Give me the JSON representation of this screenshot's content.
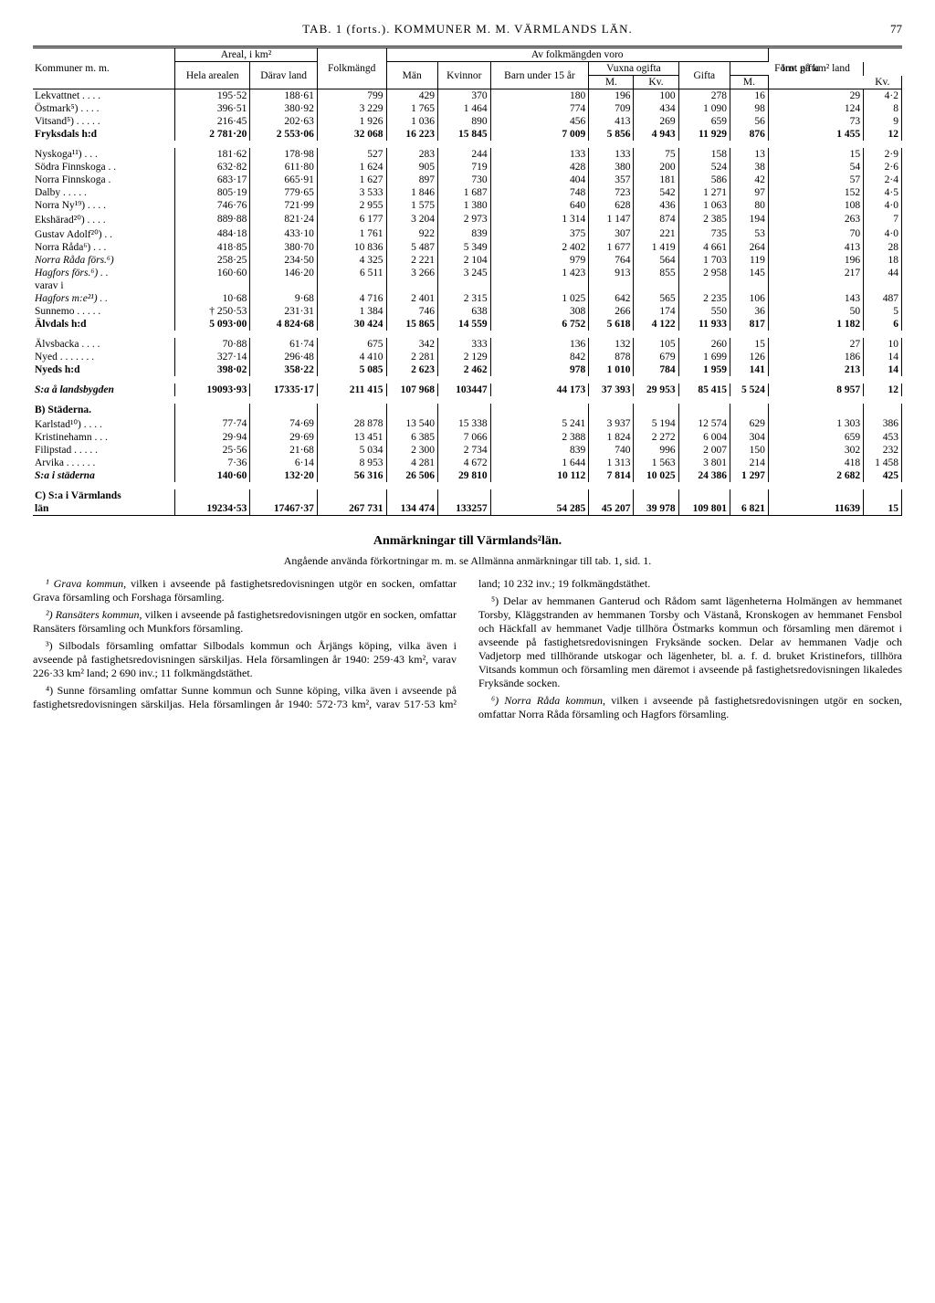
{
  "page_header": "TAB. 1 (forts.). KOMMUNER M. M.   VÄRMLANDS LÄN.",
  "page_number": "77",
  "head": {
    "kommuner": "Kommuner m. m.",
    "areal_group": "Areal, i km²",
    "hela": "Hela arealen",
    "darav": "Därav land",
    "folkmangd": "Folk­mängd",
    "av_folk": "Av folkmängden voro",
    "man": "Män",
    "kvin": "Kvin­nor",
    "barn": "Barn under 15 år",
    "vuxna": "Vuxna ogifta",
    "m": "M.",
    "kv": "Kv.",
    "gifta": "Gifta",
    "forut": "Förut gifta",
    "inv": "Inv. på km² land"
  },
  "rows": [
    {
      "l": "Lekvattnet . . . .",
      "a": "195·52",
      "b": "188·61",
      "c": "799",
      "d": "429",
      "e": "370",
      "f": "180",
      "g": "196",
      "h": "100",
      "i": "278",
      "j": "16",
      "k": "29",
      "m": "4·2"
    },
    {
      "l": "Östmark⁵) . . . .",
      "a": "396·51",
      "b": "380·92",
      "c": "3 229",
      "d": "1 765",
      "e": "1 464",
      "f": "774",
      "g": "709",
      "h": "434",
      "i": "1 090",
      "j": "98",
      "k": "124",
      "m": "8"
    },
    {
      "l": "Vitsand⁵) . . . . .",
      "a": "216·45",
      "b": "202·63",
      "c": "1 926",
      "d": "1 036",
      "e": "890",
      "f": "456",
      "g": "413",
      "h": "269",
      "i": "659",
      "j": "56",
      "k": "73",
      "m": "9"
    },
    {
      "bold": true,
      "l": "Fryksdals h:d",
      "a": "2 781·20",
      "b": "2 553·06",
      "c": "32 068",
      "d": "16 223",
      "e": "15 845",
      "f": "7 009",
      "g": "5 856",
      "h": "4 943",
      "i": "11 929",
      "j": "876",
      "k": "1 455",
      "m": "12"
    },
    {
      "spacer": true
    },
    {
      "l": "Nyskoga¹¹) . . .",
      "a": "181·62",
      "b": "178·98",
      "c": "527",
      "d": "283",
      "e": "244",
      "f": "133",
      "g": "133",
      "h": "75",
      "i": "158",
      "j": "13",
      "k": "15",
      "m": "2·9"
    },
    {
      "l": "Södra Finnskoga . .",
      "a": "632·82",
      "b": "611·80",
      "c": "1 624",
      "d": "905",
      "e": "719",
      "f": "428",
      "g": "380",
      "h": "200",
      "i": "524",
      "j": "38",
      "k": "54",
      "m": "2·6"
    },
    {
      "l": "Norra Finnskoga .",
      "a": "683·17",
      "b": "665·91",
      "c": "1 627",
      "d": "897",
      "e": "730",
      "f": "404",
      "g": "357",
      "h": "181",
      "i": "586",
      "j": "42",
      "k": "57",
      "m": "2·4"
    },
    {
      "l": "Dalby . . . . .",
      "a": "805·19",
      "b": "779·65",
      "c": "3 533",
      "d": "1 846",
      "e": "1 687",
      "f": "748",
      "g": "723",
      "h": "542",
      "i": "1 271",
      "j": "97",
      "k": "152",
      "m": "4·5"
    },
    {
      "l": "Norra Ny¹⁹) . . . .",
      "a": "746·76",
      "b": "721·99",
      "c": "2 955",
      "d": "1 575",
      "e": "1 380",
      "f": "640",
      "g": "628",
      "h": "436",
      "i": "1 063",
      "j": "80",
      "k": "108",
      "m": "4·0"
    },
    {
      "l": "Ekshärad²⁰) . . . .",
      "a": "889·88",
      "b": "821·24",
      "c": "6 177",
      "d": "3 204",
      "e": "2 973",
      "f": "1 314",
      "g": "1 147",
      "h": "874",
      "i": "2 385",
      "j": "194",
      "k": "263",
      "m": "7"
    },
    {
      "l": "Gustav Adolf²⁰) . .",
      "a": "484·18",
      "b": "433·10",
      "c": "1 761",
      "d": "922",
      "e": "839",
      "f": "375",
      "g": "307",
      "h": "221",
      "i": "735",
      "j": "53",
      "k": "70",
      "m": "4·0"
    },
    {
      "l": "Norra Råda⁶) . . .",
      "a": "418·85",
      "b": "380·70",
      "c": "10 836",
      "d": "5 487",
      "e": "5 349",
      "f": "2 402",
      "g": "1 677",
      "h": "1 419",
      "i": "4 661",
      "j": "264",
      "k": "413",
      "m": "28"
    },
    {
      "italic": true,
      "l": "Norra Råda förs.⁶)",
      "a": "258·25",
      "b": "234·50",
      "c": "4 325",
      "d": "2 221",
      "e": "2 104",
      "f": "979",
      "g": "764",
      "h": "564",
      "i": "1 703",
      "j": "119",
      "k": "196",
      "m": "18"
    },
    {
      "italic": true,
      "l": "Hagfors förs.⁶) . .",
      "a": "160·60",
      "b": "146·20",
      "c": "6 511",
      "d": "3 266",
      "e": "3 245",
      "f": "1 423",
      "g": "913",
      "h": "855",
      "i": "2 958",
      "j": "145",
      "k": "217",
      "m": "44"
    },
    {
      "l": "   varav i",
      "a": "",
      "b": "",
      "c": "",
      "d": "",
      "e": "",
      "f": "",
      "g": "",
      "h": "",
      "i": "",
      "j": "",
      "k": "",
      "m": ""
    },
    {
      "italic": true,
      "l": "Hagfors m:e²¹) . .",
      "a": "10·68",
      "b": "9·68",
      "c": "4 716",
      "d": "2 401",
      "e": "2 315",
      "f": "1 025",
      "g": "642",
      "h": "565",
      "i": "2 235",
      "j": "106",
      "k": "143",
      "m": "487"
    },
    {
      "l": "Sunnemo . . . . .",
      "a": "† 250·53",
      "b": "231·31",
      "c": "1 384",
      "d": "746",
      "e": "638",
      "f": "308",
      "g": "266",
      "h": "174",
      "i": "550",
      "j": "36",
      "k": "50",
      "m": "5"
    },
    {
      "bold": true,
      "l": "Älvdals h:d",
      "a": "5 093·00",
      "b": "4 824·68",
      "c": "30 424",
      "d": "15 865",
      "e": "14 559",
      "f": "6 752",
      "g": "5 618",
      "h": "4 122",
      "i": "11 933",
      "j": "817",
      "k": "1 182",
      "m": "6"
    },
    {
      "spacer": true
    },
    {
      "l": "Älvsbacka  . . . .",
      "a": "70·88",
      "b": "61·74",
      "c": "675",
      "d": "342",
      "e": "333",
      "f": "136",
      "g": "132",
      "h": "105",
      "i": "260",
      "j": "15",
      "k": "27",
      "m": "10"
    },
    {
      "l": "Nyed . . . . . . .",
      "a": "327·14",
      "b": "296·48",
      "c": "4 410",
      "d": "2 281",
      "e": "2 129",
      "f": "842",
      "g": "878",
      "h": "679",
      "i": "1 699",
      "j": "126",
      "k": "186",
      "m": "14"
    },
    {
      "bold": true,
      "l": "Nyeds h:d",
      "a": "398·02",
      "b": "358·22",
      "c": "5 085",
      "d": "2 623",
      "e": "2 462",
      "f": "978",
      "g": "1 010",
      "h": "784",
      "i": "1 959",
      "j": "141",
      "k": "213",
      "m": "14"
    },
    {
      "spacer": true
    },
    {
      "bold": true,
      "italic": true,
      "l": "S:a å landsbygden",
      "a": "19093·93",
      "b": "17335·17",
      "c": "211 415",
      "d": "107 968",
      "e": "103447",
      "f": "44 173",
      "g": "37 393",
      "h": "29 953",
      "i": "85 415",
      "j": "5 524",
      "k": "8 957",
      "m": "12"
    },
    {
      "spacer": true
    },
    {
      "bold": true,
      "l": "B) Städerna.",
      "a": "",
      "b": "",
      "c": "",
      "d": "",
      "e": "",
      "f": "",
      "g": "",
      "h": "",
      "i": "",
      "j": "",
      "k": "",
      "m": ""
    },
    {
      "l": "Karlstad¹⁰) . . . .",
      "a": "77·74",
      "b": "74·69",
      "c": "28 878",
      "d": "13 540",
      "e": "15 338",
      "f": "5 241",
      "g": "3 937",
      "h": "5 194",
      "i": "12 574",
      "j": "629",
      "k": "1 303",
      "m": "386"
    },
    {
      "l": "Kristinehamn  . . .",
      "a": "29·94",
      "b": "29·69",
      "c": "13 451",
      "d": "6 385",
      "e": "7 066",
      "f": "2 388",
      "g": "1 824",
      "h": "2 272",
      "i": "6 004",
      "j": "304",
      "k": "659",
      "m": "453"
    },
    {
      "l": "Filipstad . . . . .",
      "a": "25·56",
      "b": "21·68",
      "c": "5 034",
      "d": "2 300",
      "e": "2 734",
      "f": "839",
      "g": "740",
      "h": "996",
      "i": "2 007",
      "j": "150",
      "k": "302",
      "m": "232"
    },
    {
      "l": "Arvika . . . . . .",
      "a": "7·36",
      "b": "6·14",
      "c": "8 953",
      "d": "4 281",
      "e": "4 672",
      "f": "1 644",
      "g": "1 313",
      "h": "1 563",
      "i": "3 801",
      "j": "214",
      "k": "418",
      "m": "1 458"
    },
    {
      "bold": true,
      "italic": true,
      "l": "S:a i städerna",
      "a": "140·60",
      "b": "132·20",
      "c": "56 316",
      "d": "26 506",
      "e": "29 810",
      "f": "10 112",
      "g": "7 814",
      "h": "10 025",
      "i": "24 386",
      "j": "1 297",
      "k": "2 682",
      "m": "425"
    },
    {
      "spacer": true
    },
    {
      "bold": true,
      "l": "C) S:a i Värmlands",
      "a": "",
      "b": "",
      "c": "",
      "d": "",
      "e": "",
      "f": "",
      "g": "",
      "h": "",
      "i": "",
      "j": "",
      "k": "",
      "m": ""
    },
    {
      "bold": true,
      "l": "      län",
      "a": "19234·53",
      "b": "17467·37",
      "c": "267 731",
      "d": "134 474",
      "e": "133257",
      "f": "54 285",
      "g": "45 207",
      "h": "39 978",
      "i": "109 801",
      "j": "6 821",
      "k": "11639",
      "m": "15"
    }
  ],
  "notes_title": "Anmärkningar till Värmlands²län.",
  "notes_lead": "Angående använda förkortningar m. m. se Allmänna anmärkningar till tab. 1, sid. 1.",
  "notes": [
    "¹ Grava kommun, vilken i avseende på fastighetsredovisningen utgör en socken, omfattar Grava församling och Forshaga församling.",
    "²) Ransäters kommun, vilken i avseende på fastighetsredovisningen utgör en socken, omfattar Ransäters församling och Munkfors församling.",
    "³) Silbodals församling omfattar Silbodals kommun och Årjängs köping, vilka även i avseende på fastighetsredovisningen särskiljas. Hela församlingen år 1940: 259·43 km², varav 226·33 km² land; 2 690 inv.; 11 folkmängdstäthet.",
    "⁴) Sunne församling omfattar Sunne kommun och Sunne köping, vilka även i avseende på fastighetsredovisningen särskiljas. Hela församlingen år 1940: 572·73 km², varav 517·53 km² land; 10 232 inv.; 19 folkmängdstäthet.",
    "⁵) Delar av hemmanen Ganterud och Rådom samt lägenheterna Holmängen av hemmanet Torsby, Kläggstranden av hemmanen Torsby och Västanå, Kronskogen av hemmanet Fensbol och Häckfall av hemmanet Vadje tillhöra Östmarks kommun och församling men däremot i avseende på fastighetsredovisningen Fryksände socken. Delar av hemmanen Vadje och Vadjetorp med tillhörande utskogar och lägenheter, bl. a. f. d. bruket Kristinefors, tillhöra Vitsands kommun och församling men däremot i avseende på fastighetsredovisningen likaledes Fryksände socken.",
    "⁶) Norra Råda kommun, vilken i avseende på fastighetsredovisningen utgör en socken, omfattar Norra Råda församling och Hagfors församling."
  ]
}
